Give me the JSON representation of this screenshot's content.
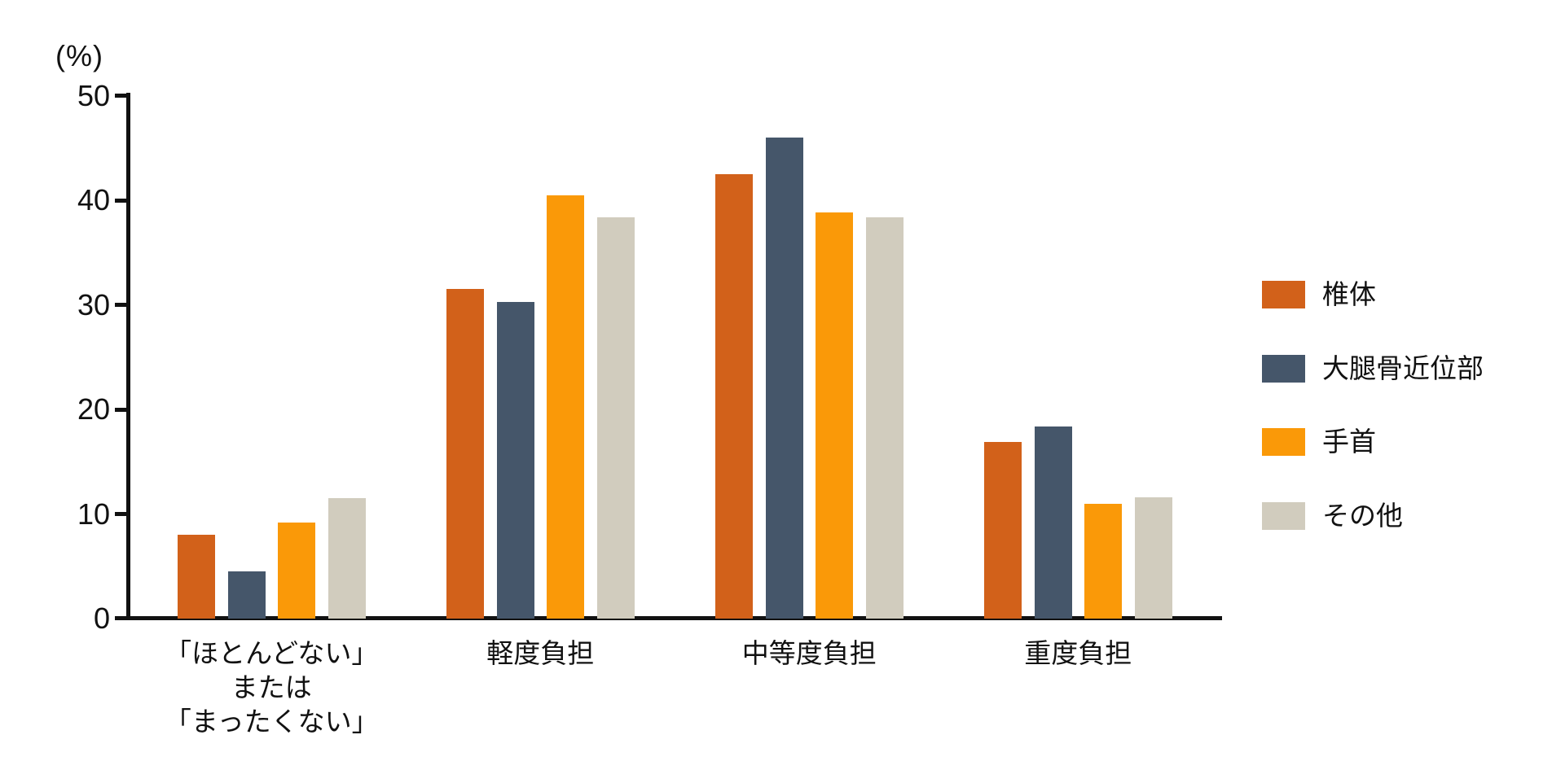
{
  "chart_data": {
    "type": "bar",
    "unit_label": "(%)",
    "ylim": [
      0,
      50
    ],
    "yticks": [
      0,
      10,
      20,
      30,
      40,
      50
    ],
    "grid": false,
    "legend_position": "right",
    "background": "#ffffff",
    "axis_color": "#111111",
    "categories": [
      [
        "「ほとんどない」",
        "または",
        "「まったくない」"
      ],
      [
        "軽度負担"
      ],
      [
        "中等度負担"
      ],
      [
        "重度負担"
      ]
    ],
    "series": [
      {
        "name": "椎体",
        "color": "#d2611a",
        "values": [
          8.0,
          31.5,
          42.5,
          16.9
        ]
      },
      {
        "name": "大腿骨近位部",
        "color": "#45566a",
        "values": [
          4.5,
          30.3,
          46.0,
          18.4
        ]
      },
      {
        "name": "手首",
        "color": "#fa9908",
        "values": [
          9.2,
          40.5,
          38.8,
          11.0
        ]
      },
      {
        "name": "その他",
        "color": "#d1ccbe",
        "values": [
          11.5,
          38.4,
          38.4,
          11.6
        ]
      }
    ]
  }
}
